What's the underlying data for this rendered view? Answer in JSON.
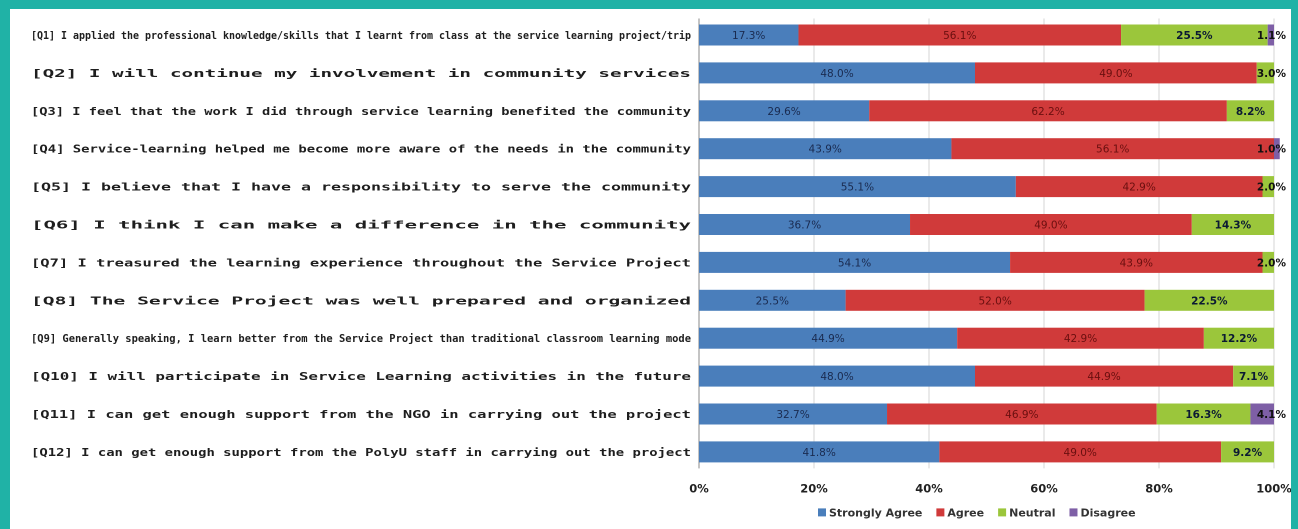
{
  "chart_data": {
    "type": "bar",
    "orientation": "horizontal",
    "stacked": true,
    "xlim": [
      0,
      100
    ],
    "x_ticks": [
      "0%",
      "20%",
      "40%",
      "60%",
      "80%",
      "100%"
    ],
    "grid": true,
    "legend_position": "bottom-right",
    "categories": [
      "[Q1] I applied the professional knowledge/skills that I learnt from class at the service learning project/trip",
      "[Q2] I will continue my involvement in community services",
      "[Q3] I feel that the work I did through service learning benefited the community",
      "[Q4] Service-learning helped me become more aware of the needs in the community",
      "[Q5] I believe that I have a responsibility to serve the community",
      "[Q6] I think I can make a difference in the community",
      "[Q7] I treasured the learning experience throughout the Service Project",
      "[Q8] The Service Project was well prepared and organized",
      "[Q9] Generally speaking, I learn better from the Service Project than traditional classroom learning mode",
      "[Q10] I will participate in Service Learning activities in the future",
      "[Q11] I can get enough support from the NGO in carrying out the project",
      "[Q12] I can get enough support from the PolyU staff in carrying out the project"
    ],
    "series": [
      {
        "name": "Strongly Agree",
        "color": "#4a7ebb",
        "labels": [
          "17.3%",
          "48.0%",
          "29.6%",
          "43.9%",
          "55.1%",
          "36.7%",
          "54.1%",
          "25.5%",
          "44.9%",
          "48.0%",
          "32.7%",
          "41.8%"
        ],
        "values": [
          17.3,
          48.0,
          29.6,
          43.9,
          55.1,
          36.7,
          54.1,
          25.5,
          44.9,
          48.0,
          32.7,
          41.8
        ]
      },
      {
        "name": "Agree",
        "color": "#d03a3a",
        "labels": [
          "56.1%",
          "49.0%",
          "62.2%",
          "56.1%",
          "42.9%",
          "49.0%",
          "43.9%",
          "52.0%",
          "42.9%",
          "44.9%",
          "46.9%",
          "49.0%"
        ],
        "values": [
          56.1,
          49.0,
          62.2,
          56.1,
          42.9,
          49.0,
          43.9,
          52.0,
          42.9,
          44.9,
          46.9,
          49.0
        ]
      },
      {
        "name": "Neutral",
        "color": "#9bc63b",
        "labels": [
          "25.5%",
          "3.0%",
          "8.2%",
          "",
          "2.0%",
          "14.3%",
          "2.0%",
          "22.5%",
          "12.2%",
          "7.1%",
          "16.3%",
          "9.2%"
        ],
        "values": [
          25.5,
          3.0,
          8.2,
          0,
          2.0,
          14.3,
          2.0,
          22.5,
          12.2,
          7.1,
          16.3,
          9.2
        ]
      },
      {
        "name": "Disagree",
        "color": "#7e5fa6",
        "labels": [
          "1.1%",
          "",
          "",
          "1.0%",
          "",
          "",
          "",
          "",
          "",
          "",
          "4.1%",
          ""
        ],
        "values": [
          1.1,
          0,
          0,
          1.0,
          0,
          0,
          0,
          0,
          0,
          0,
          4.1,
          0
        ]
      }
    ]
  }
}
